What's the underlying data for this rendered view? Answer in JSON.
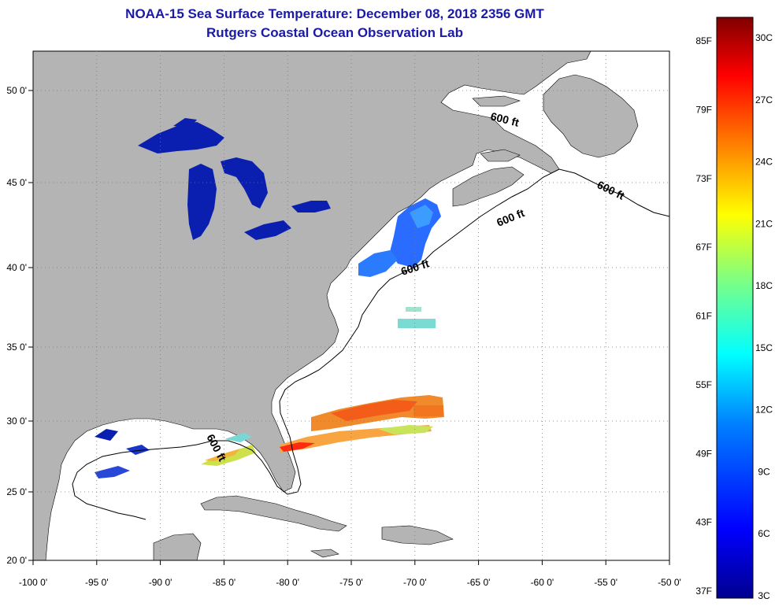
{
  "title": {
    "line1": "NOAA-15 Sea Surface Temperature:  December 08, 2018 2356 GMT",
    "line2": "Rutgers Coastal Ocean Observation Lab"
  },
  "map": {
    "lon_ticks": [
      "-100 0'",
      "-95 0'",
      "-90 0'",
      "-85 0'",
      "-80 0'",
      "-75 0'",
      "-70 0'",
      "-65 0'",
      "-60 0'",
      "-55 0'",
      "-50 0'"
    ],
    "lat_ticks": [
      "50 0'",
      "45 0'",
      "40 0'",
      "35 0'",
      "30 0'",
      "25 0'",
      "20 0'"
    ],
    "contour_label": "600 ft",
    "land_color": "#b4b4b4",
    "ocean_color": "#ffffff"
  },
  "colorbar": {
    "fahrenheit_labels": [
      "85F",
      "79F",
      "73F",
      "67F",
      "61F",
      "55F",
      "49F",
      "43F",
      "37F"
    ],
    "celsius_labels": [
      "30C",
      "27C",
      "24C",
      "21C",
      "18C",
      "15C",
      "12C",
      "9C",
      "6C",
      "3C"
    ],
    "colors": [
      "#7f0000",
      "#ff0000",
      "#ff8000",
      "#ffff00",
      "#80ff80",
      "#00ffff",
      "#0080ff",
      "#0000ff",
      "#00008f"
    ]
  }
}
